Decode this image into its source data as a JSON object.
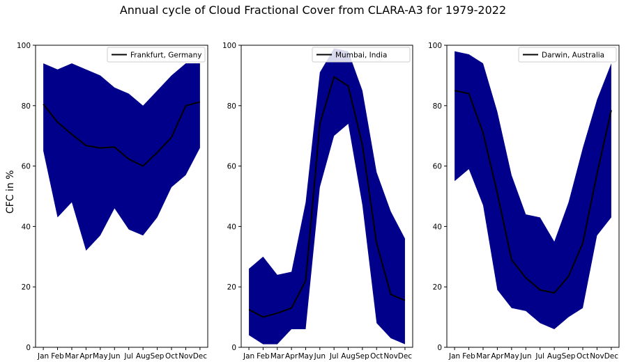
{
  "figure": {
    "title": "Annual cycle of Cloud Fractional Cover from CLARA-A3 for 1979-2022",
    "ylabel": "CFC in %",
    "colors": {
      "band": "#00008b",
      "line": "#000000"
    }
  },
  "chart_data": [
    {
      "type": "area",
      "name": "Frankfurt, Germany",
      "categories": [
        "Jan",
        "Feb",
        "Mar",
        "Apr",
        "May",
        "Jun",
        "Jul",
        "Aug",
        "Sep",
        "Oct",
        "Nov",
        "Dec"
      ],
      "ylim": [
        0,
        100
      ],
      "yticks": [
        0,
        20,
        40,
        60,
        80,
        100
      ],
      "legend": "top-right",
      "series": [
        {
          "name": "Frankfurt, Germany",
          "role": "mean",
          "values": [
            80.5,
            74.5,
            70.5,
            66.8,
            66,
            66.3,
            62.3,
            60,
            64.5,
            69.5,
            80,
            81.2
          ]
        },
        {
          "role": "max",
          "values": [
            94,
            92,
            94,
            92,
            90,
            86,
            84,
            80,
            85,
            90,
            94,
            94
          ]
        },
        {
          "role": "min",
          "values": [
            65,
            43,
            48,
            32,
            37,
            46,
            39,
            37,
            43,
            53,
            57,
            66
          ]
        }
      ]
    },
    {
      "type": "area",
      "name": "Mumbai, India",
      "categories": [
        "Jan",
        "Feb",
        "Mar",
        "Apr",
        "May",
        "Jun",
        "Jul",
        "Aug",
        "Sep",
        "Oct",
        "Nov",
        "Dec"
      ],
      "ylim": [
        0,
        100
      ],
      "yticks": [
        0,
        20,
        40,
        60,
        80,
        100
      ],
      "legend": "top-right",
      "series": [
        {
          "name": "Mumbai, India",
          "role": "mean",
          "values": [
            12.5,
            10,
            11.3,
            13,
            22,
            74,
            89.5,
            86.5,
            67,
            34.5,
            17.5,
            15.5
          ]
        },
        {
          "role": "max",
          "values": [
            26,
            30,
            24,
            25,
            48,
            91,
            99,
            98,
            85,
            58,
            45,
            36
          ]
        },
        {
          "role": "min",
          "values": [
            4,
            1,
            1,
            6,
            6,
            53,
            70,
            74,
            47,
            8,
            3,
            1
          ]
        }
      ]
    },
    {
      "type": "area",
      "name": "Darwin, Australia",
      "categories": [
        "Jan",
        "Feb",
        "Mar",
        "Apr",
        "May",
        "Jun",
        "Jul",
        "Aug",
        "Sep",
        "Oct",
        "Nov",
        "Dec"
      ],
      "ylim": [
        0,
        100
      ],
      "yticks": [
        0,
        20,
        40,
        60,
        80,
        100
      ],
      "legend": "top-right",
      "series": [
        {
          "name": "Darwin, Australia",
          "role": "mean",
          "values": [
            85,
            84,
            71,
            51,
            29,
            23,
            19,
            18,
            23.5,
            34.5,
            57.5,
            78.5
          ]
        },
        {
          "role": "max",
          "values": [
            98,
            97,
            94,
            78,
            57,
            44,
            43,
            35,
            48,
            66,
            82,
            94
          ]
        },
        {
          "role": "min",
          "values": [
            55,
            59,
            47,
            19,
            13,
            12,
            8,
            6,
            10,
            13,
            37,
            43
          ]
        }
      ]
    }
  ]
}
